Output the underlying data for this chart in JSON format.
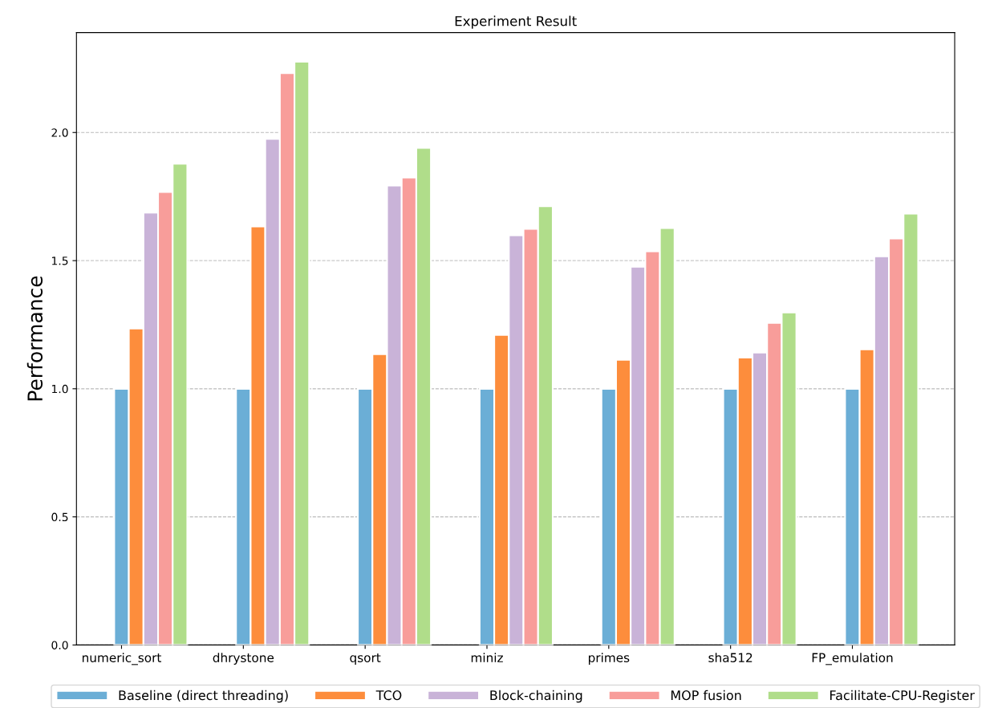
{
  "chart_data": {
    "type": "bar",
    "title": "Experiment Result",
    "ylabel": "Performance",
    "categories": [
      "numeric_sort",
      "dhrystone",
      "qsort",
      "miniz",
      "primes",
      "sha512",
      "FP_emulation"
    ],
    "series": [
      {
        "name": "Baseline (direct threading)",
        "color": "#6baed6",
        "values": [
          1.0,
          1.0,
          1.0,
          1.0,
          1.0,
          1.0,
          1.0
        ]
      },
      {
        "name": "TCO",
        "color": "#fd8d3c",
        "values": [
          1.235,
          1.633,
          1.135,
          1.21,
          1.113,
          1.122,
          1.154
        ]
      },
      {
        "name": "Block-chaining",
        "color": "#c9b3d8",
        "values": [
          1.687,
          1.975,
          1.793,
          1.599,
          1.476,
          1.141,
          1.517
        ]
      },
      {
        "name": "MOP fusion",
        "color": "#f89d9a",
        "values": [
          1.768,
          2.232,
          1.824,
          1.624,
          1.536,
          1.257,
          1.586
        ]
      },
      {
        "name": "Facilitate-CPU-Register",
        "color": "#b0dd8a",
        "values": [
          1.878,
          2.276,
          1.94,
          1.712,
          1.627,
          1.298,
          1.683
        ]
      }
    ],
    "ylim": [
      0,
      2.39
    ],
    "yticks": [
      {
        "value": 0,
        "label": "0.0"
      },
      {
        "value": 0.5,
        "label": "0.5"
      },
      {
        "value": 1.0,
        "label": "1.0"
      },
      {
        "value": 1.5,
        "label": "1.5"
      },
      {
        "value": 2.0,
        "label": "2.0"
      }
    ],
    "grid": "y",
    "legend": "bottom"
  }
}
